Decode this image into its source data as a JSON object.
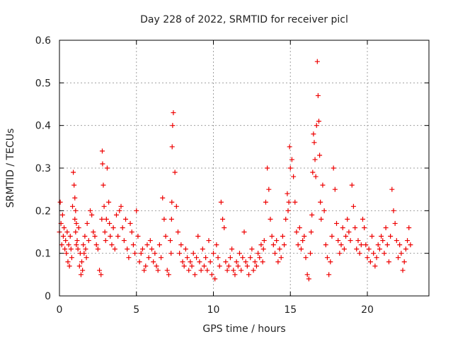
{
  "chart_data": {
    "type": "scatter",
    "title": "Day 228 of 2022, SRMTID for receiver picl",
    "xlabel": "GPS time / hours",
    "ylabel": "SRMTID / TECUs",
    "xlim": [
      0,
      24
    ],
    "ylim": [
      0,
      0.6
    ],
    "x_ticks": [
      0,
      5,
      10,
      15,
      20
    ],
    "x_tick_labels": [
      "0",
      "5",
      "10",
      "15",
      "20"
    ],
    "y_ticks": [
      0,
      0.1,
      0.2,
      0.3,
      0.4,
      0.5,
      0.6
    ],
    "y_tick_labels": [
      "0",
      "0.1",
      "0.2",
      "0.3",
      "0.4",
      "0.5",
      "0.6"
    ],
    "grid": true,
    "marker": "+",
    "series": [
      {
        "name": "SRMTID",
        "color": "#ee0000",
        "x": [
          0.0,
          0.05,
          0.1,
          0.15,
          0.2,
          0.25,
          0.3,
          0.35,
          0.4,
          0.45,
          0.5,
          0.55,
          0.6,
          0.65,
          0.7,
          0.75,
          0.8,
          0.85,
          0.9,
          0.95,
          1.0,
          1.0,
          1.05,
          1.05,
          1.1,
          1.1,
          1.15,
          1.2,
          1.25,
          1.3,
          1.35,
          1.4,
          1.45,
          1.5,
          1.55,
          1.6,
          1.65,
          1.7,
          1.75,
          1.8,
          1.9,
          2.0,
          2.1,
          2.2,
          2.3,
          2.4,
          2.5,
          2.6,
          2.7,
          2.75,
          2.78,
          2.8,
          2.85,
          2.9,
          2.95,
          3.0,
          3.05,
          3.1,
          3.2,
          3.25,
          3.3,
          3.4,
          3.5,
          3.6,
          3.7,
          3.8,
          3.9,
          4.0,
          4.1,
          4.2,
          4.3,
          4.4,
          4.5,
          4.6,
          4.7,
          4.8,
          4.9,
          5.0,
          5.1,
          5.2,
          5.3,
          5.4,
          5.5,
          5.6,
          5.7,
          5.8,
          5.9,
          6.0,
          6.1,
          6.2,
          6.3,
          6.4,
          6.5,
          6.6,
          6.7,
          6.8,
          6.9,
          7.0,
          7.1,
          7.2,
          7.25,
          7.28,
          7.3,
          7.32,
          7.35,
          7.4,
          7.5,
          7.6,
          7.7,
          7.8,
          7.9,
          8.0,
          8.1,
          8.2,
          8.3,
          8.4,
          8.5,
          8.6,
          8.7,
          8.8,
          8.9,
          9.0,
          9.1,
          9.2,
          9.3,
          9.4,
          9.5,
          9.6,
          9.7,
          9.8,
          9.9,
          10.0,
          10.1,
          10.2,
          10.3,
          10.4,
          10.5,
          10.6,
          10.7,
          10.8,
          10.9,
          11.0,
          11.1,
          11.2,
          11.3,
          11.4,
          11.5,
          11.6,
          11.7,
          11.8,
          11.9,
          12.0,
          12.1,
          12.2,
          12.3,
          12.4,
          12.5,
          12.6,
          12.7,
          12.8,
          12.9,
          13.0,
          13.1,
          13.2,
          13.25,
          13.3,
          13.4,
          13.5,
          13.6,
          13.7,
          13.8,
          13.9,
          14.0,
          14.1,
          14.2,
          14.3,
          14.4,
          14.5,
          14.6,
          14.7,
          14.8,
          14.85,
          14.9,
          14.95,
          15.0,
          15.1,
          15.2,
          15.3,
          15.4,
          15.5,
          15.6,
          15.7,
          15.8,
          15.9,
          16.0,
          16.1,
          16.2,
          16.3,
          16.35,
          16.4,
          16.45,
          16.5,
          16.55,
          16.6,
          16.65,
          16.7,
          16.75,
          16.8,
          16.85,
          16.9,
          16.95,
          17.0,
          17.1,
          17.2,
          17.3,
          17.4,
          17.5,
          17.6,
          17.7,
          17.8,
          17.9,
          18.0,
          18.1,
          18.2,
          18.3,
          18.4,
          18.5,
          18.6,
          18.7,
          18.8,
          18.9,
          19.0,
          19.1,
          19.2,
          19.3,
          19.4,
          19.5,
          19.6,
          19.7,
          19.8,
          19.9,
          20.0,
          20.1,
          20.2,
          20.3,
          20.4,
          20.5,
          20.6,
          20.7,
          20.8,
          20.9,
          21.0,
          21.1,
          21.2,
          21.3,
          21.4,
          21.5,
          21.6,
          21.7,
          21.8,
          21.9,
          22.0,
          22.1,
          22.2,
          22.3,
          22.4,
          22.5,
          22.6,
          22.7,
          22.8
        ],
        "y": [
          0.15,
          0.22,
          0.17,
          0.12,
          0.19,
          0.14,
          0.16,
          0.11,
          0.13,
          0.1,
          0.15,
          0.08,
          0.12,
          0.07,
          0.14,
          0.11,
          0.09,
          0.21,
          0.29,
          0.26,
          0.18,
          0.23,
          0.2,
          0.15,
          0.17,
          0.12,
          0.13,
          0.11,
          0.16,
          0.07,
          0.1,
          0.05,
          0.08,
          0.06,
          0.12,
          0.1,
          0.14,
          0.11,
          0.09,
          0.17,
          0.13,
          0.2,
          0.19,
          0.15,
          0.14,
          0.12,
          0.11,
          0.06,
          0.05,
          0.18,
          0.34,
          0.31,
          0.26,
          0.21,
          0.15,
          0.13,
          0.18,
          0.3,
          0.22,
          0.17,
          0.14,
          0.12,
          0.16,
          0.11,
          0.19,
          0.14,
          0.2,
          0.21,
          0.16,
          0.13,
          0.18,
          0.11,
          0.09,
          0.17,
          0.15,
          0.12,
          0.1,
          0.2,
          0.14,
          0.08,
          0.1,
          0.11,
          0.06,
          0.07,
          0.12,
          0.09,
          0.13,
          0.11,
          0.08,
          0.1,
          0.07,
          0.06,
          0.12,
          0.09,
          0.23,
          0.18,
          0.14,
          0.06,
          0.05,
          0.13,
          0.1,
          0.18,
          0.22,
          0.35,
          0.4,
          0.43,
          0.29,
          0.21,
          0.15,
          0.1,
          0.12,
          0.08,
          0.07,
          0.11,
          0.09,
          0.06,
          0.08,
          0.07,
          0.1,
          0.05,
          0.09,
          0.14,
          0.08,
          0.06,
          0.11,
          0.07,
          0.09,
          0.06,
          0.13,
          0.08,
          0.05,
          0.1,
          0.04,
          0.12,
          0.09,
          0.07,
          0.22,
          0.18,
          0.16,
          0.08,
          0.06,
          0.07,
          0.09,
          0.11,
          0.06,
          0.05,
          0.08,
          0.07,
          0.1,
          0.06,
          0.09,
          0.15,
          0.08,
          0.07,
          0.05,
          0.09,
          0.11,
          0.06,
          0.08,
          0.07,
          0.1,
          0.09,
          0.12,
          0.08,
          0.11,
          0.13,
          0.22,
          0.3,
          0.25,
          0.18,
          0.14,
          0.12,
          0.1,
          0.13,
          0.08,
          0.11,
          0.09,
          0.14,
          0.12,
          0.18,
          0.24,
          0.2,
          0.22,
          0.35,
          0.3,
          0.32,
          0.28,
          0.22,
          0.15,
          0.12,
          0.16,
          0.11,
          0.13,
          0.14,
          0.09,
          0.05,
          0.04,
          0.1,
          0.15,
          0.19,
          0.29,
          0.38,
          0.36,
          0.32,
          0.28,
          0.4,
          0.55,
          0.47,
          0.41,
          0.33,
          0.22,
          0.18,
          0.26,
          0.2,
          0.12,
          0.09,
          0.05,
          0.08,
          0.14,
          0.3,
          0.25,
          0.17,
          0.13,
          0.1,
          0.12,
          0.16,
          0.11,
          0.14,
          0.18,
          0.15,
          0.13,
          0.26,
          0.21,
          0.16,
          0.11,
          0.13,
          0.1,
          0.12,
          0.18,
          0.16,
          0.12,
          0.09,
          0.11,
          0.08,
          0.14,
          0.1,
          0.07,
          0.09,
          0.12,
          0.11,
          0.14,
          0.13,
          0.1,
          0.16,
          0.12,
          0.08,
          0.14,
          0.25,
          0.2,
          0.17,
          0.13,
          0.09,
          0.12,
          0.1,
          0.06,
          0.08,
          0.11,
          0.13,
          0.16,
          0.12
        ]
      }
    ]
  }
}
